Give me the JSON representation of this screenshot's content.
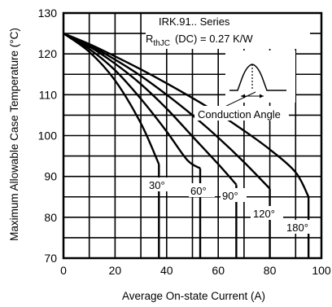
{
  "chart_data": {
    "type": "line",
    "title": "",
    "xlabel": "Average On-state Current (A)",
    "ylabel": "Maximum Allowable Case Temperature (°C)",
    "xlim": [
      0,
      100
    ],
    "ylim": [
      70,
      130
    ],
    "x_ticks": [
      "0",
      "20",
      "40",
      "60",
      "80",
      "100"
    ],
    "y_ticks": [
      "70",
      "80",
      "90",
      "100",
      "110",
      "120",
      "130"
    ],
    "grid": true,
    "annotations": {
      "series_title": "IRK.91.. Series",
      "rth_main": "R",
      "rth_sub": "thJC",
      "rth_rest": "(DC) = 0.27 K/W",
      "conduction": "Conduction Angle"
    },
    "series": [
      {
        "name": "30°",
        "points": [
          [
            0,
            125
          ],
          [
            10,
            120.5
          ],
          [
            20,
            113.5
          ],
          [
            30,
            103
          ],
          [
            37,
            93
          ]
        ],
        "drop_to": 70
      },
      {
        "name": "60°",
        "points": [
          [
            0,
            125
          ],
          [
            10,
            121.2
          ],
          [
            20,
            116
          ],
          [
            30,
            109
          ],
          [
            40,
            101
          ],
          [
            48,
            94
          ],
          [
            53,
            92
          ]
        ],
        "drop_to": 70
      },
      {
        "name": "90°",
        "points": [
          [
            0,
            125
          ],
          [
            10,
            121.8
          ],
          [
            20,
            117.6
          ],
          [
            30,
            112.6
          ],
          [
            40,
            106.6
          ],
          [
            50,
            99.8
          ],
          [
            60,
            93
          ],
          [
            67,
            88
          ]
        ],
        "drop_to": 70
      },
      {
        "name": "120°",
        "points": [
          [
            0,
            125
          ],
          [
            10,
            122.1
          ],
          [
            20,
            118.6
          ],
          [
            30,
            114.6
          ],
          [
            40,
            110
          ],
          [
            50,
            105
          ],
          [
            60,
            99.5
          ],
          [
            70,
            93.5
          ],
          [
            80,
            87
          ]
        ],
        "drop_to": 70
      },
      {
        "name": "180°",
        "points": [
          [
            0,
            125
          ],
          [
            10,
            122.4
          ],
          [
            20,
            119.4
          ],
          [
            30,
            116.2
          ],
          [
            40,
            112.8
          ],
          [
            50,
            109.2
          ],
          [
            60,
            105.4
          ],
          [
            70,
            101.2
          ],
          [
            80,
            96.6
          ],
          [
            90,
            91
          ],
          [
            95,
            85
          ]
        ],
        "drop_to": 70
      }
    ]
  }
}
